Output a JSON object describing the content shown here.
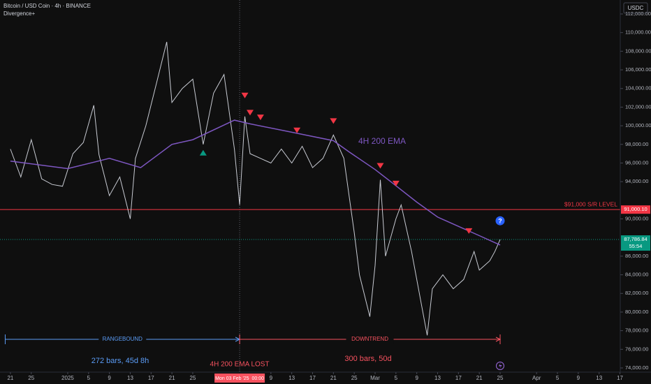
{
  "chart_data": {
    "type": "line",
    "title": "Bitcoin / USD Coin · 4h · BINANCE",
    "indicator": "Divergence+",
    "currency": "USDC",
    "xlim": [
      "2024-12-19",
      "2025-04-18"
    ],
    "ylim": [
      74000,
      112000
    ],
    "grid": false,
    "xticks": [
      {
        "value": "2024-12-21",
        "label": "21"
      },
      {
        "value": "2024-12-25",
        "label": "25"
      },
      {
        "value": "2025-01-01",
        "label": "2025"
      },
      {
        "value": "2025-01-05",
        "label": "5"
      },
      {
        "value": "2025-01-09",
        "label": "9"
      },
      {
        "value": "2025-01-13",
        "label": "13"
      },
      {
        "value": "2025-01-17",
        "label": "17"
      },
      {
        "value": "2025-01-21",
        "label": "21"
      },
      {
        "value": "2025-01-25",
        "label": "25"
      },
      {
        "value": "2025-02-09",
        "label": "9"
      },
      {
        "value": "2025-02-13",
        "label": "13"
      },
      {
        "value": "2025-02-17",
        "label": "17"
      },
      {
        "value": "2025-02-21",
        "label": "21"
      },
      {
        "value": "2025-02-25",
        "label": "25"
      },
      {
        "value": "2025-03-01",
        "label": "Mar"
      },
      {
        "value": "2025-03-05",
        "label": "5"
      },
      {
        "value": "2025-03-09",
        "label": "9"
      },
      {
        "value": "2025-03-13",
        "label": "13"
      },
      {
        "value": "2025-03-17",
        "label": "17"
      },
      {
        "value": "2025-03-21",
        "label": "21"
      },
      {
        "value": "2025-03-25",
        "label": "25"
      },
      {
        "value": "2025-04-01",
        "label": "Apr"
      },
      {
        "value": "2025-04-05",
        "label": "5"
      },
      {
        "value": "2025-04-09",
        "label": "9"
      },
      {
        "value": "2025-04-13",
        "label": "13"
      },
      {
        "value": "2025-04-17",
        "label": "17"
      }
    ],
    "yticks": [
      {
        "value": 74000,
        "label": "74,000.00"
      },
      {
        "value": 76000,
        "label": "76,000.00"
      },
      {
        "value": 78000,
        "label": "78,000.00"
      },
      {
        "value": 80000,
        "label": "80,000.00"
      },
      {
        "value": 82000,
        "label": "82,000.00"
      },
      {
        "value": 84000,
        "label": "84,000.00"
      },
      {
        "value": 86000,
        "label": "86,000.00"
      },
      {
        "value": 90000,
        "label": "90,000.00"
      },
      {
        "value": 94000,
        "label": "94,000.00"
      },
      {
        "value": 96000,
        "label": "96,000.00"
      },
      {
        "value": 98000,
        "label": "98,000.00"
      },
      {
        "value": 100000,
        "label": "100,000.00"
      },
      {
        "value": 102000,
        "label": "102,000.00"
      },
      {
        "value": 104000,
        "label": "104,000.00"
      },
      {
        "value": 106000,
        "label": "106,000.00"
      },
      {
        "value": 108000,
        "label": "108,000.00"
      },
      {
        "value": 110000,
        "label": "110,000.00"
      },
      {
        "value": 112000,
        "label": "112,000.00"
      }
    ],
    "series": [
      {
        "color": "#c8cbd3",
        "x": [
          "2024-12-21",
          "2024-12-23",
          "2024-12-25",
          "2024-12-27",
          "2024-12-29",
          "2024-12-31",
          "2025-01-02",
          "2025-01-04",
          "2025-01-06",
          "2025-01-07",
          "2025-01-09",
          "2025-01-11",
          "2025-01-13",
          "2025-01-14",
          "2025-01-16",
          "2025-01-18",
          "2025-01-20",
          "2025-01-21",
          "2025-01-23",
          "2025-01-25",
          "2025-01-27",
          "2025-01-29",
          "2025-01-31",
          "2025-02-02",
          "2025-02-03",
          "2025-02-04",
          "2025-02-05",
          "2025-02-07",
          "2025-02-09",
          "2025-02-11",
          "2025-02-13",
          "2025-02-15",
          "2025-02-17",
          "2025-02-19",
          "2025-02-21",
          "2025-02-23",
          "2025-02-25",
          "2025-02-26",
          "2025-02-28",
          "2025-03-01",
          "2025-03-02",
          "2025-03-03",
          "2025-03-05",
          "2025-03-06",
          "2025-03-08",
          "2025-03-10",
          "2025-03-11",
          "2025-03-12",
          "2025-03-14",
          "2025-03-16",
          "2025-03-18",
          "2025-03-20",
          "2025-03-21",
          "2025-03-23",
          "2025-03-24",
          "2025-03-25"
        ],
        "values": [
          97500,
          94500,
          98500,
          94300,
          93700,
          93500,
          97000,
          98200,
          102200,
          96900,
          92500,
          94500,
          90000,
          96500,
          100000,
          104500,
          109000,
          102500,
          104000,
          105000,
          98000,
          103500,
          105500,
          97500,
          91500,
          101000,
          97000,
          96500,
          96000,
          97500,
          96000,
          97800,
          95500,
          96500,
          99000,
          96500,
          88500,
          84000,
          79500,
          85000,
          94200,
          86000,
          90000,
          91500,
          86500,
          80500,
          77500,
          82500,
          84000,
          82500,
          83500,
          86500,
          84500,
          85500,
          86500,
          87786.84
        ]
      },
      {
        "name": "4H 200 EMA",
        "color": "#7e57c2",
        "x": [
          "2024-12-21",
          "2025-01-01",
          "2025-01-09",
          "2025-01-15",
          "2025-01-21",
          "2025-01-25",
          "2025-02-02",
          "2025-02-05",
          "2025-02-13",
          "2025-02-21",
          "2025-02-24",
          "2025-03-01",
          "2025-03-04",
          "2025-03-09",
          "2025-03-13",
          "2025-03-17",
          "2025-03-21",
          "2025-03-25"
        ],
        "values": [
          96200,
          95400,
          96500,
          95500,
          98000,
          98500,
          100600,
          100200,
          99300,
          98400,
          97200,
          95300,
          94000,
          91800,
          90200,
          89200,
          88200,
          87200
        ]
      }
    ],
    "levels": [
      {
        "value": 91000.1,
        "label": "$91,000 S/R LEVEL",
        "price_label": "91,000.10",
        "color": "#f23645"
      }
    ],
    "current_price": {
      "value": 87786.84,
      "label": "87,786.84",
      "countdown": "55:54",
      "color": "#089981"
    },
    "signals": {
      "bearish": [
        {
          "x": "2025-02-04",
          "y": 103250
        },
        {
          "x": "2025-02-05",
          "y": 101400
        },
        {
          "x": "2025-02-07",
          "y": 100900
        },
        {
          "x": "2025-02-14",
          "y": 99500
        },
        {
          "x": "2025-02-21",
          "y": 100500
        },
        {
          "x": "2025-03-02",
          "y": 95700
        },
        {
          "x": "2025-03-05",
          "y": 93800
        },
        {
          "x": "2025-03-19",
          "y": 88700
        }
      ],
      "bullish": [
        {
          "x": "2025-01-27",
          "y": 97100
        }
      ],
      "alert": {
        "x": "2025-03-25",
        "y": 89800
      }
    },
    "crosshair": {
      "x": "2025-02-03",
      "label": "Mon 03 Feb '25  00:00",
      "note": "4H 200 EMA LOST"
    },
    "ranges": [
      {
        "start": "2024-12-20",
        "end": "2025-02-03",
        "name": "RANGEBOUND",
        "stats": "272 bars, 45d 8h",
        "color": "#5b9cf6"
      },
      {
        "start": "2025-02-03",
        "end": "2025-03-25",
        "name": "DOWNTREND",
        "stats": "300 bars, 50d",
        "color": "#f7525f"
      }
    ]
  }
}
